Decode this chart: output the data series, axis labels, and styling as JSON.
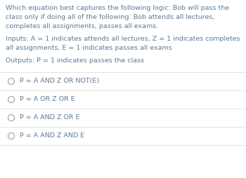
{
  "background_color": "#ffffff",
  "text_color": "#5b7b9c",
  "question_lines": [
    "Which equation best captures the following logic: Bob will pass the",
    "class only if doing all of the following: Bob attends all lectures,",
    "completes all assignments, passes all exams."
  ],
  "inputs_lines": [
    "Inputs: A = 1 indicates attends all lectures, Z = 1 indicates completes",
    "all assignments, E = 1 indicates passes all exams"
  ],
  "outputs_line": "Outputs: P = 1 indicates passes the class",
  "options": [
    "P = A AND Z OR NOT(E)",
    "P = A OR Z OR E",
    "P = A AND Z OR E",
    "P = A AND Z AND E"
  ],
  "divider_color": "#d8d8d8",
  "font_size_text": 6.8,
  "font_size_options": 6.8,
  "circle_color": "#aaaaaa"
}
